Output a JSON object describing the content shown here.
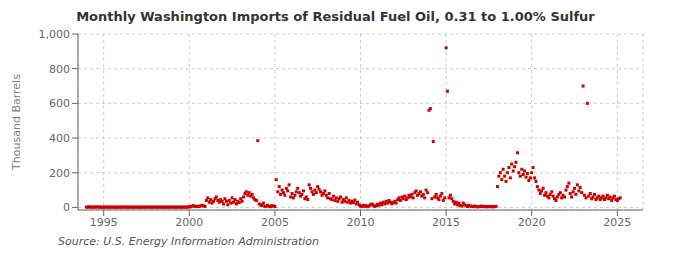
{
  "chart_data": {
    "type": "scatter",
    "title": "Monthly Washington Imports of Residual Fuel Oil, 0.31 to 1.00% Sulfur",
    "ylabel": "Thousand Barrels",
    "annotations": [
      "Source: U.S. Energy Information Administration"
    ],
    "color": "#cc0000",
    "marker": "square",
    "grid": true,
    "xlim": [
      1993.5,
      2026.5
    ],
    "ylim": [
      -15,
      1000
    ],
    "xticks": [
      1995,
      2000,
      2005,
      2010,
      2015,
      2020,
      2025
    ],
    "yticks": [
      0,
      200,
      400,
      600,
      800,
      {
        "value": 1000,
        "label": "1,000"
      }
    ],
    "x": [
      1994.0,
      1994.08,
      1994.17,
      1994.25,
      1994.33,
      1994.42,
      1994.5,
      1994.58,
      1994.67,
      1994.75,
      1994.83,
      1994.92,
      1995.0,
      1995.08,
      1995.17,
      1995.25,
      1995.33,
      1995.42,
      1995.5,
      1995.58,
      1995.67,
      1995.75,
      1995.83,
      1995.92,
      1996.0,
      1996.08,
      1996.17,
      1996.25,
      1996.33,
      1996.42,
      1996.5,
      1996.58,
      1996.67,
      1996.75,
      1996.83,
      1996.92,
      1997.0,
      1997.08,
      1997.17,
      1997.25,
      1997.33,
      1997.42,
      1997.5,
      1997.58,
      1997.67,
      1997.75,
      1997.83,
      1997.92,
      1998.0,
      1998.08,
      1998.17,
      1998.25,
      1998.33,
      1998.42,
      1998.5,
      1998.58,
      1998.67,
      1998.75,
      1998.83,
      1998.92,
      1999.0,
      1999.08,
      1999.17,
      1999.25,
      1999.33,
      1999.42,
      1999.5,
      1999.58,
      1999.67,
      1999.75,
      1999.83,
      1999.92,
      2000.0,
      2000.08,
      2000.17,
      2000.25,
      2000.33,
      2000.42,
      2000.5,
      2000.58,
      2000.67,
      2000.75,
      2000.83,
      2000.92,
      2001.0,
      2001.08,
      2001.17,
      2001.25,
      2001.33,
      2001.42,
      2001.5,
      2001.58,
      2001.67,
      2001.75,
      2001.83,
      2001.92,
      2002.0,
      2002.08,
      2002.17,
      2002.25,
      2002.33,
      2002.42,
      2002.5,
      2002.58,
      2002.67,
      2002.75,
      2002.83,
      2002.92,
      2003.0,
      2003.08,
      2003.17,
      2003.25,
      2003.33,
      2003.42,
      2003.5,
      2003.58,
      2003.67,
      2003.75,
      2003.83,
      2003.92,
      2004.0,
      2004.08,
      2004.17,
      2004.25,
      2004.33,
      2004.42,
      2004.5,
      2004.58,
      2004.67,
      2004.75,
      2004.83,
      2004.92,
      2005.0,
      2005.08,
      2005.17,
      2005.25,
      2005.33,
      2005.42,
      2005.5,
      2005.58,
      2005.67,
      2005.75,
      2005.83,
      2005.92,
      2006.0,
      2006.08,
      2006.17,
      2006.25,
      2006.33,
      2006.42,
      2006.5,
      2006.58,
      2006.67,
      2006.75,
      2006.83,
      2006.92,
      2007.0,
      2007.08,
      2007.17,
      2007.25,
      2007.33,
      2007.42,
      2007.5,
      2007.58,
      2007.67,
      2007.75,
      2007.83,
      2007.92,
      2008.0,
      2008.08,
      2008.17,
      2008.25,
      2008.33,
      2008.42,
      2008.5,
      2008.58,
      2008.67,
      2008.75,
      2008.83,
      2008.92,
      2009.0,
      2009.08,
      2009.17,
      2009.25,
      2009.33,
      2009.42,
      2009.5,
      2009.58,
      2009.67,
      2009.75,
      2009.83,
      2009.92,
      2010.0,
      2010.08,
      2010.17,
      2010.25,
      2010.33,
      2010.42,
      2010.5,
      2010.58,
      2010.67,
      2010.75,
      2010.83,
      2010.92,
      2011.0,
      2011.08,
      2011.17,
      2011.25,
      2011.33,
      2011.42,
      2011.5,
      2011.58,
      2011.67,
      2011.75,
      2011.83,
      2011.92,
      2012.0,
      2012.08,
      2012.17,
      2012.25,
      2012.33,
      2012.42,
      2012.5,
      2012.58,
      2012.67,
      2012.75,
      2012.83,
      2012.92,
      2013.0,
      2013.08,
      2013.17,
      2013.25,
      2013.33,
      2013.42,
      2013.5,
      2013.58,
      2013.67,
      2013.75,
      2013.83,
      2013.92,
      2014.0,
      2014.08,
      2014.17,
      2014.25,
      2014.33,
      2014.42,
      2014.5,
      2014.58,
      2014.67,
      2014.75,
      2014.83,
      2014.92,
      2015.0,
      2015.08,
      2015.17,
      2015.25,
      2015.33,
      2015.42,
      2015.5,
      2015.58,
      2015.67,
      2015.75,
      2015.83,
      2015.92,
      2016.0,
      2016.08,
      2016.17,
      2016.25,
      2016.33,
      2016.42,
      2016.5,
      2016.58,
      2016.67,
      2016.75,
      2016.83,
      2016.92,
      2017.0,
      2017.08,
      2017.17,
      2017.25,
      2017.33,
      2017.42,
      2017.5,
      2017.58,
      2017.67,
      2017.75,
      2017.83,
      2017.92,
      2018.0,
      2018.08,
      2018.17,
      2018.25,
      2018.33,
      2018.42,
      2018.5,
      2018.58,
      2018.67,
      2018.75,
      2018.83,
      2018.92,
      2019.0,
      2019.08,
      2019.17,
      2019.25,
      2019.33,
      2019.42,
      2019.5,
      2019.58,
      2019.67,
      2019.75,
      2019.83,
      2019.92,
      2020.0,
      2020.08,
      2020.17,
      2020.25,
      2020.33,
      2020.42,
      2020.5,
      2020.58,
      2020.67,
      2020.75,
      2020.83,
      2020.92,
      2021.0,
      2021.08,
      2021.17,
      2021.25,
      2021.33,
      2021.42,
      2021.5,
      2021.58,
      2021.67,
      2021.75,
      2021.83,
      2021.92,
      2022.0,
      2022.08,
      2022.17,
      2022.25,
      2022.33,
      2022.42,
      2022.5,
      2022.58,
      2022.67,
      2022.75,
      2022.83,
      2022.92,
      2023.0,
      2023.08,
      2023.17,
      2023.25,
      2023.33,
      2023.42,
      2023.5,
      2023.58,
      2023.67,
      2023.75,
      2023.83,
      2023.92,
      2024.0,
      2024.08,
      2024.17,
      2024.25,
      2024.33,
      2024.42,
      2024.5,
      2024.58,
      2024.67,
      2024.75,
      2024.83,
      2024.92,
      2025.0,
      2025.08,
      2025.17
    ],
    "values": [
      2,
      1,
      3,
      2,
      1,
      2,
      1,
      3,
      2,
      1,
      2,
      1,
      2,
      1,
      2,
      1,
      2,
      1,
      2,
      1,
      2,
      1,
      2,
      1,
      2,
      1,
      2,
      1,
      2,
      1,
      2,
      1,
      2,
      1,
      2,
      1,
      1,
      2,
      1,
      2,
      1,
      2,
      1,
      2,
      1,
      2,
      1,
      2,
      1,
      2,
      1,
      2,
      1,
      2,
      1,
      2,
      1,
      2,
      1,
      2,
      1,
      2,
      1,
      2,
      1,
      2,
      1,
      2,
      1,
      2,
      1,
      2,
      5,
      3,
      8,
      10,
      6,
      4,
      7,
      5,
      9,
      12,
      8,
      6,
      40,
      55,
      30,
      45,
      25,
      35,
      50,
      60,
      40,
      30,
      45,
      35,
      20,
      50,
      35,
      15,
      40,
      25,
      55,
      30,
      45,
      20,
      35,
      28,
      50,
      35,
      60,
      80,
      90,
      70,
      85,
      65,
      75,
      55,
      45,
      40,
      385,
      20,
      15,
      10,
      25,
      5,
      8,
      12,
      6,
      4,
      10,
      8,
      5,
      160,
      90,
      120,
      75,
      100,
      85,
      70,
      110,
      95,
      130,
      60,
      80,
      55,
      70,
      90,
      110,
      85,
      65,
      75,
      95,
      50,
      60,
      45,
      130,
      110,
      90,
      75,
      100,
      85,
      120,
      105,
      90,
      70,
      80,
      95,
      70,
      55,
      80,
      50,
      45,
      65,
      40,
      55,
      35,
      50,
      60,
      30,
      45,
      35,
      55,
      30,
      40,
      25,
      35,
      28,
      42,
      20,
      30,
      15,
      8,
      5,
      12,
      6,
      10,
      4,
      8,
      15,
      20,
      12,
      6,
      9,
      18,
      12,
      25,
      15,
      30,
      20,
      35,
      25,
      40,
      30,
      20,
      28,
      35,
      25,
      45,
      55,
      40,
      60,
      50,
      65,
      45,
      55,
      70,
      60,
      75,
      55,
      85,
      95,
      70,
      80,
      90,
      65,
      75,
      55,
      100,
      85,
      560,
      570,
      50,
      380,
      60,
      75,
      55,
      45,
      65,
      80,
      40,
      55,
      920,
      670,
      55,
      70,
      50,
      35,
      20,
      30,
      15,
      25,
      10,
      8,
      25,
      15,
      10,
      5,
      12,
      8,
      6,
      4,
      8,
      5,
      3,
      4,
      5,
      8,
      4,
      6,
      3,
      5,
      4,
      6,
      3,
      5,
      4,
      6,
      120,
      180,
      200,
      160,
      220,
      180,
      150,
      200,
      230,
      170,
      250,
      210,
      235,
      260,
      315,
      200,
      180,
      220,
      190,
      210,
      175,
      195,
      155,
      170,
      200,
      230,
      170,
      150,
      120,
      100,
      80,
      95,
      110,
      70,
      85,
      65,
      55,
      75,
      90,
      65,
      50,
      40,
      60,
      75,
      85,
      55,
      70,
      60,
      100,
      120,
      140,
      80,
      60,
      90,
      110,
      75,
      130,
      95,
      115,
      85,
      700,
      70,
      55,
      600,
      65,
      80,
      50,
      60,
      75,
      45,
      55,
      65,
      45,
      55,
      65,
      45,
      55,
      70,
      50,
      60,
      40,
      55,
      65,
      45,
      40,
      50,
      55
    ]
  }
}
